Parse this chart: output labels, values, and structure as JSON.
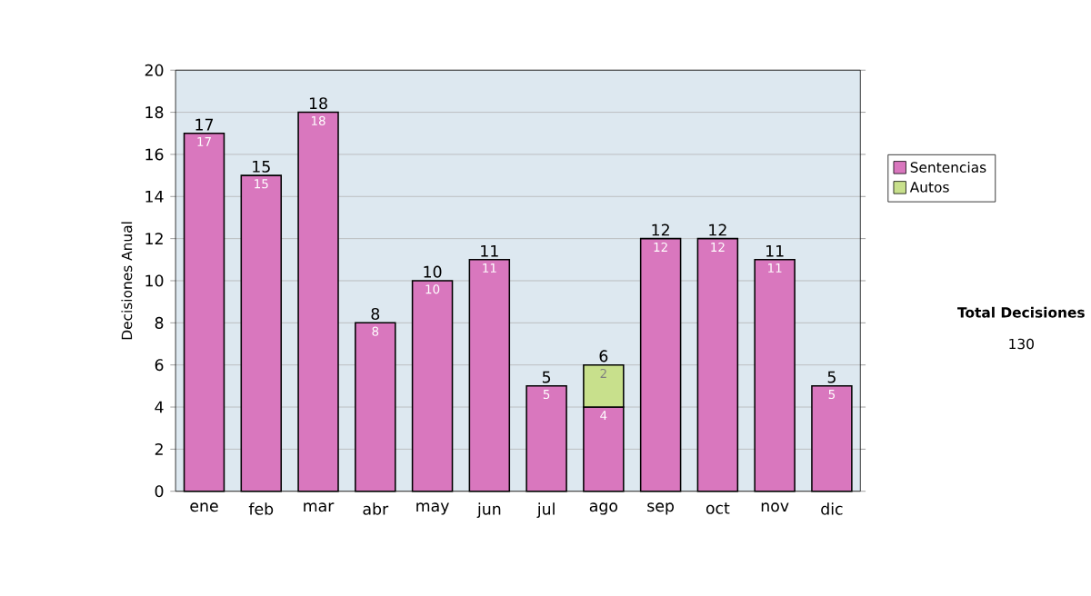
{
  "chart_data": {
    "type": "bar",
    "stacked": true,
    "ylabel": "Decisiones Anual",
    "categories": [
      "ene",
      "feb",
      "mar",
      "abr",
      "may",
      "jun",
      "jul",
      "ago",
      "sep",
      "oct",
      "nov",
      "dic"
    ],
    "series": [
      {
        "name": "Sentencias",
        "color": "#d977be",
        "values": [
          17,
          15,
          18,
          8,
          10,
          11,
          5,
          4,
          12,
          12,
          11,
          5
        ]
      },
      {
        "name": "Autos",
        "color": "#c8e08c",
        "values": [
          null,
          null,
          null,
          null,
          null,
          null,
          null,
          2,
          null,
          null,
          null,
          null
        ]
      }
    ],
    "data_labels": true,
    "totals": [
      "17",
      "15",
      "18",
      "8",
      "10",
      "11",
      "5",
      "6",
      "12",
      "12",
      "11",
      "5"
    ],
    "ylim": [
      0,
      20
    ],
    "yticks": [
      0,
      2,
      4,
      6,
      8,
      10,
      12,
      14,
      16,
      18,
      20
    ],
    "grid": "y",
    "legend": "right",
    "annotations": [
      "Total Decisiones",
      "130"
    ]
  }
}
